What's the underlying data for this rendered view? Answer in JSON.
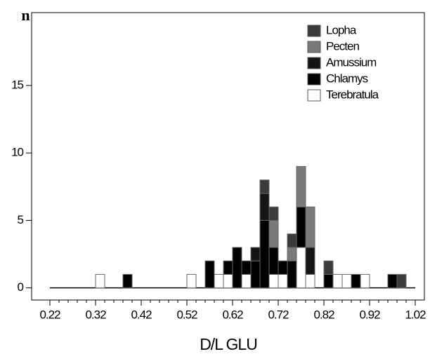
{
  "chart_data": {
    "type": "stacked-histogram",
    "y_label": "n",
    "x_label": "D/L GLU",
    "bins": [
      0.22,
      0.24,
      0.26,
      0.28,
      0.3,
      0.32,
      0.34,
      0.36,
      0.38,
      0.4,
      0.42,
      0.44,
      0.46,
      0.48,
      0.5,
      0.52,
      0.54,
      0.56,
      0.58,
      0.6,
      0.62,
      0.64,
      0.66,
      0.68,
      0.7,
      0.72,
      0.74,
      0.76,
      0.78,
      0.8,
      0.82,
      0.84,
      0.86,
      0.88,
      0.9,
      0.92,
      0.94,
      0.96,
      0.98,
      1.0,
      1.02
    ],
    "series": [
      {
        "name": "Lopha",
        "color": "#3a3a3a",
        "values": [
          0,
          0,
          0,
          0,
          0,
          0,
          0,
          0,
          0,
          0,
          0,
          0,
          0,
          0,
          0,
          0,
          0,
          0,
          0,
          0,
          0,
          0,
          0,
          1,
          1,
          0,
          1,
          0,
          0,
          0,
          1,
          0,
          0,
          0,
          0,
          0,
          0,
          0,
          1,
          0
        ]
      },
      {
        "name": "Pecten",
        "color": "#7a7a7a",
        "values": [
          0,
          0,
          0,
          0,
          0,
          0,
          0,
          0,
          0,
          0,
          0,
          0,
          0,
          0,
          0,
          0,
          0,
          0,
          0,
          0,
          0,
          0,
          0,
          0,
          2,
          0,
          1,
          3,
          3,
          0,
          0,
          0,
          0,
          0,
          0,
          0,
          0,
          0,
          0,
          0
        ]
      },
      {
        "name": "Amussium",
        "color": "#151515",
        "values": [
          0,
          0,
          0,
          0,
          0,
          0,
          0,
          0,
          0,
          0,
          0,
          0,
          0,
          0,
          0,
          0,
          0,
          0,
          0,
          0,
          0,
          0,
          1,
          2,
          0,
          0,
          0,
          0,
          2,
          0,
          0,
          0,
          0,
          0,
          0,
          0,
          0,
          0,
          0,
          0
        ]
      },
      {
        "name": "Chlamys",
        "color": "#000000",
        "values": [
          0,
          0,
          0,
          0,
          0,
          0,
          0,
          0,
          1,
          0,
          0,
          0,
          0,
          0,
          0,
          0,
          0,
          2,
          0,
          1,
          3,
          1,
          2,
          5,
          2,
          1,
          2,
          3,
          0,
          0,
          1,
          0,
          0,
          1,
          0,
          0,
          0,
          1,
          0,
          0
        ]
      },
      {
        "name": "Terebratula",
        "color": "#ffffff",
        "values": [
          0,
          0,
          0,
          0,
          0,
          1,
          0,
          0,
          0,
          0,
          0,
          0,
          0,
          0,
          0,
          1,
          0,
          0,
          1,
          1,
          0,
          1,
          0,
          0,
          1,
          1,
          0,
          3,
          1,
          0,
          0,
          1,
          1,
          0,
          1,
          0,
          0,
          0,
          0,
          0
        ]
      }
    ],
    "xlim": [
      0.18,
      1.04
    ],
    "ylim": [
      -0.9,
      20.4
    ],
    "xticks": [
      0.22,
      0.32,
      0.42,
      0.52,
      0.62,
      0.72,
      0.82,
      0.92,
      1.02
    ],
    "yticks": [
      0,
      5,
      10,
      15
    ],
    "legend": "top-right",
    "grid": false
  }
}
